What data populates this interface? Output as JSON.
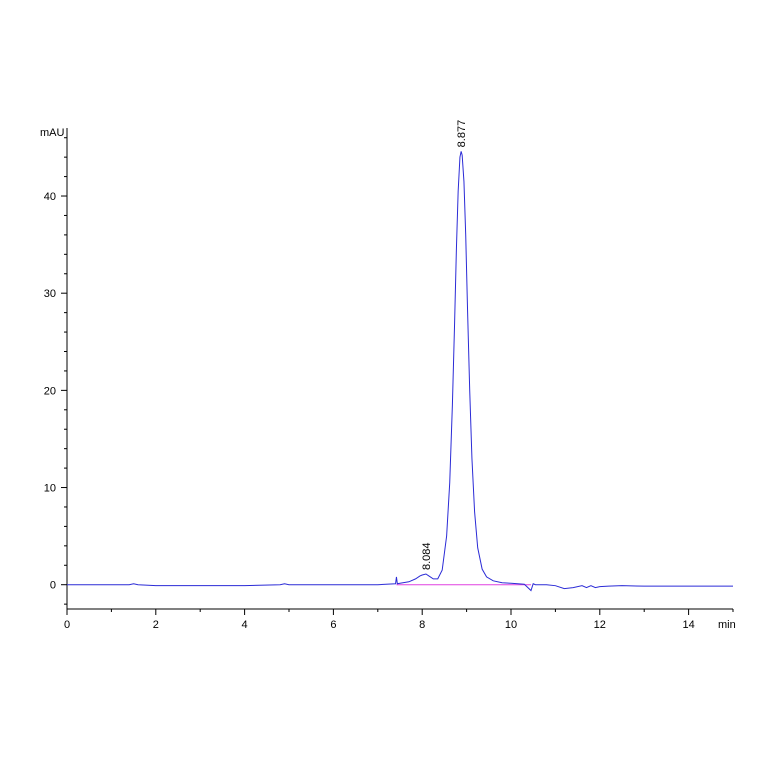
{
  "chart_data": {
    "type": "line",
    "title": "",
    "xlabel": "min",
    "ylabel": "mAU",
    "xlim": [
      0,
      15
    ],
    "ylim": [
      -2.5,
      47
    ],
    "x_ticks": [
      0,
      2,
      4,
      6,
      8,
      10,
      12,
      14
    ],
    "x_tick_labels": [
      "0",
      "2",
      "4",
      "6",
      "8",
      "10",
      "12",
      "14"
    ],
    "y_ticks": [
      0,
      10,
      20,
      30,
      40
    ],
    "y_tick_labels": [
      "0",
      "10",
      "20",
      "30",
      "40"
    ],
    "grid": false,
    "legend": "none",
    "series": [
      {
        "color": "#2b2bd6",
        "x": [
          0.0,
          1.0,
          1.4,
          1.5,
          1.6,
          2.0,
          3.0,
          4.0,
          4.8,
          4.9,
          5.0,
          6.0,
          7.0,
          7.4,
          7.42,
          7.44,
          7.5,
          7.7,
          7.85,
          7.95,
          8.0,
          8.084,
          8.15,
          8.25,
          8.35,
          8.45,
          8.55,
          8.62,
          8.68,
          8.73,
          8.77,
          8.81,
          8.85,
          8.877,
          8.9,
          8.94,
          8.98,
          9.02,
          9.07,
          9.12,
          9.18,
          9.25,
          9.35,
          9.45,
          9.6,
          9.8,
          10.0,
          10.3,
          10.45,
          10.5,
          10.55,
          10.8,
          11.0,
          11.2,
          11.4,
          11.6,
          11.7,
          11.8,
          11.9,
          12.0,
          12.2,
          12.5,
          13.0,
          14.0,
          15.0
        ],
        "y": [
          0.0,
          0.0,
          0.0,
          0.1,
          0.0,
          -0.1,
          -0.1,
          -0.1,
          0.0,
          0.1,
          0.0,
          0.0,
          0.0,
          0.1,
          0.8,
          0.1,
          0.15,
          0.3,
          0.6,
          0.9,
          1.0,
          1.1,
          0.9,
          0.6,
          0.6,
          1.5,
          5.0,
          10.5,
          18.5,
          27.0,
          34.5,
          40.5,
          44.0,
          44.6,
          44.2,
          41.5,
          36.0,
          28.5,
          20.0,
          13.0,
          7.5,
          3.8,
          1.6,
          0.8,
          0.4,
          0.2,
          0.15,
          0.05,
          -0.6,
          0.1,
          0.0,
          0.0,
          -0.1,
          -0.4,
          -0.3,
          -0.1,
          -0.3,
          -0.1,
          -0.3,
          -0.2,
          -0.15,
          -0.1,
          -0.15,
          -0.15,
          -0.15
        ]
      }
    ],
    "baseline": {
      "color": "#e040e0",
      "x": [
        7.42,
        10.45
      ],
      "y": [
        0.0,
        0.0
      ]
    },
    "annotations": [
      {
        "x": 8.084,
        "y": 1.1,
        "text": "8.084"
      },
      {
        "x": 8.877,
        "y": 44.6,
        "text": "8.877"
      }
    ]
  }
}
